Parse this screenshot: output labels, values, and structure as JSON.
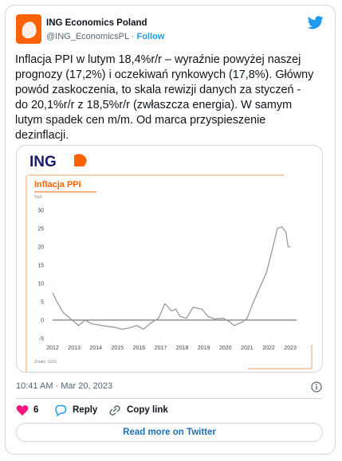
{
  "tweet": {
    "name": "ING Economics Poland",
    "handle": "@ING_EconomicsPL",
    "follow": "Follow",
    "text_lines": [
      "Inflacja PPI w lutym 18,4%r/r – wyraźnie powyżej naszej",
      "prognozy (17,2%) i oczekiwań rynkowych (17,8%). Główny",
      "powód zaskoczenia, to skala rewizji danych za styczeń -",
      "do 20,1%r/r z 18,5%r/r (zwłaszcza energia). W samym",
      "lutym spadek cen m/m. Od marca przyspieszenie",
      "dezinflacji."
    ],
    "image_logo": "ING",
    "timestamp": "10:41 AM · Mar 20, 2023",
    "likes": "6",
    "reply": "Reply",
    "copy_link": "Copy link",
    "read_more": "Read more on Twitter"
  },
  "chart_data": {
    "type": "line",
    "title": "Inflacja PPI",
    "y_label": "%r/r",
    "source": "Źródło: GUS",
    "x": [
      2012.0,
      2012.2,
      2012.5,
      2012.9,
      2013.2,
      2013.5,
      2013.8,
      2014.0,
      2014.5,
      2014.9,
      2015.2,
      2015.5,
      2015.9,
      2016.2,
      2016.5,
      2016.9,
      2017.2,
      2017.5,
      2017.7,
      2017.9,
      2018.2,
      2018.5,
      2018.9,
      2019.2,
      2019.5,
      2019.9,
      2020.2,
      2020.4,
      2020.8,
      2021.0,
      2021.3,
      2021.6,
      2021.9,
      2022.2,
      2022.4,
      2022.6,
      2022.8,
      2022.9,
      2023.0
    ],
    "values": [
      7.5,
      5,
      2,
      0,
      -1.5,
      0,
      -1,
      -1.2,
      -1.7,
      -2,
      -2.5,
      -2.2,
      -1.5,
      -2.5,
      -1,
      0.5,
      4.5,
      2.5,
      3,
      1,
      0.5,
      3.5,
      3,
      1,
      0.3,
      0.5,
      -0.5,
      -1.5,
      -0.5,
      0.5,
      5,
      9,
      13,
      20,
      25,
      25.5,
      24,
      20,
      20
    ],
    "color": "#9a9a9a",
    "xlim": [
      2012,
      2023.3
    ],
    "xticks": [
      2012,
      2013,
      2014,
      2015,
      2016,
      2017,
      2018,
      2019,
      2020,
      2021,
      2022,
      2023
    ],
    "ylim": [
      -5,
      30
    ],
    "yticks": [
      -5,
      0,
      5,
      10,
      15,
      20,
      25,
      30
    ]
  }
}
